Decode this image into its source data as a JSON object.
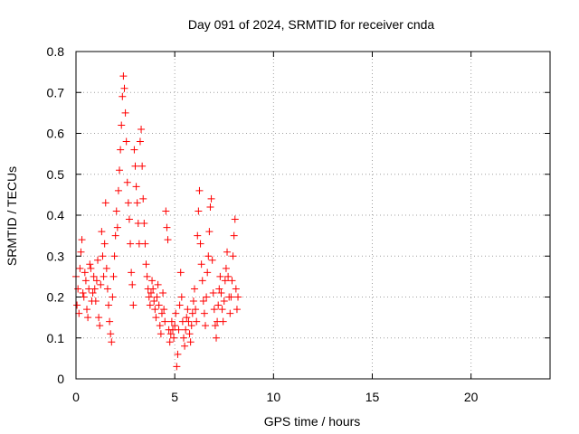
{
  "chart_data": {
    "type": "scatter",
    "title": "Day 091 of 2024, SRMTID for receiver cnda",
    "xlabel": "GPS time / hours",
    "ylabel": "SRMTID / TECUs",
    "xlim": [
      0,
      24
    ],
    "ylim": [
      0,
      0.8
    ],
    "xticks": [
      0,
      5,
      10,
      15,
      20
    ],
    "yticks": [
      0,
      0.1,
      0.2,
      0.3,
      0.4,
      0.5,
      0.6,
      0.7,
      0.8
    ],
    "xtick_labels": [
      "0",
      "5",
      "10",
      "15",
      "20"
    ],
    "ytick_labels": [
      "0",
      "0.1",
      "0.2",
      "0.3",
      "0.4",
      "0.5",
      "0.6",
      "0.7",
      "0.8"
    ],
    "grid": true,
    "marker": "+",
    "color": "#ff0000",
    "series": [
      {
        "name": "cnda",
        "points": [
          [
            0.0,
            0.25
          ],
          [
            0.05,
            0.18
          ],
          [
            0.1,
            0.22
          ],
          [
            0.15,
            0.16
          ],
          [
            0.2,
            0.27
          ],
          [
            0.25,
            0.31
          ],
          [
            0.3,
            0.34
          ],
          [
            0.35,
            0.21
          ],
          [
            0.4,
            0.2
          ],
          [
            0.45,
            0.26
          ],
          [
            0.5,
            0.24
          ],
          [
            0.55,
            0.17
          ],
          [
            0.6,
            0.15
          ],
          [
            0.65,
            0.22
          ],
          [
            0.7,
            0.28
          ],
          [
            0.75,
            0.27
          ],
          [
            0.8,
            0.19
          ],
          [
            0.85,
            0.21
          ],
          [
            0.9,
            0.25
          ],
          [
            0.95,
            0.22
          ],
          [
            1.0,
            0.19
          ],
          [
            1.05,
            0.24
          ],
          [
            1.1,
            0.29
          ],
          [
            1.15,
            0.15
          ],
          [
            1.2,
            0.13
          ],
          [
            1.25,
            0.23
          ],
          [
            1.3,
            0.36
          ],
          [
            1.35,
            0.3
          ],
          [
            1.4,
            0.25
          ],
          [
            1.45,
            0.33
          ],
          [
            1.5,
            0.43
          ],
          [
            1.55,
            0.27
          ],
          [
            1.6,
            0.22
          ],
          [
            1.65,
            0.18
          ],
          [
            1.7,
            0.14
          ],
          [
            1.75,
            0.11
          ],
          [
            1.8,
            0.09
          ],
          [
            1.85,
            0.2
          ],
          [
            1.9,
            0.25
          ],
          [
            1.95,
            0.3
          ],
          [
            2.0,
            0.35
          ],
          [
            2.05,
            0.41
          ],
          [
            2.1,
            0.37
          ],
          [
            2.15,
            0.46
          ],
          [
            2.2,
            0.51
          ],
          [
            2.25,
            0.56
          ],
          [
            2.3,
            0.62
          ],
          [
            2.35,
            0.69
          ],
          [
            2.4,
            0.74
          ],
          [
            2.45,
            0.71
          ],
          [
            2.5,
            0.65
          ],
          [
            2.55,
            0.58
          ],
          [
            2.6,
            0.48
          ],
          [
            2.65,
            0.43
          ],
          [
            2.7,
            0.39
          ],
          [
            2.75,
            0.33
          ],
          [
            2.8,
            0.26
          ],
          [
            2.85,
            0.23
          ],
          [
            2.9,
            0.18
          ],
          [
            2.95,
            0.56
          ],
          [
            3.0,
            0.52
          ],
          [
            3.05,
            0.47
          ],
          [
            3.1,
            0.43
          ],
          [
            3.15,
            0.38
          ],
          [
            3.2,
            0.33
          ],
          [
            3.25,
            0.58
          ],
          [
            3.3,
            0.61
          ],
          [
            3.35,
            0.52
          ],
          [
            3.4,
            0.44
          ],
          [
            3.45,
            0.38
          ],
          [
            3.5,
            0.33
          ],
          [
            3.55,
            0.28
          ],
          [
            3.6,
            0.25
          ],
          [
            3.65,
            0.22
          ],
          [
            3.7,
            0.2
          ],
          [
            3.75,
            0.18
          ],
          [
            3.8,
            0.21
          ],
          [
            3.85,
            0.24
          ],
          [
            3.9,
            0.22
          ],
          [
            3.95,
            0.19
          ],
          [
            4.0,
            0.17
          ],
          [
            4.05,
            0.15
          ],
          [
            4.1,
            0.2
          ],
          [
            4.15,
            0.23
          ],
          [
            4.2,
            0.18
          ],
          [
            4.25,
            0.13
          ],
          [
            4.3,
            0.11
          ],
          [
            4.35,
            0.16
          ],
          [
            4.4,
            0.21
          ],
          [
            4.45,
            0.17
          ],
          [
            4.5,
            0.14
          ],
          [
            4.55,
            0.41
          ],
          [
            4.6,
            0.37
          ],
          [
            4.65,
            0.34
          ],
          [
            4.7,
            0.12
          ],
          [
            4.75,
            0.09
          ],
          [
            4.8,
            0.11
          ],
          [
            4.85,
            0.14
          ],
          [
            4.9,
            0.12
          ],
          [
            4.95,
            0.1
          ],
          [
            5.0,
            0.13
          ],
          [
            5.05,
            0.16
          ],
          [
            5.1,
            0.03
          ],
          [
            5.15,
            0.06
          ],
          [
            5.2,
            0.12
          ],
          [
            5.25,
            0.18
          ],
          [
            5.3,
            0.26
          ],
          [
            5.35,
            0.2
          ],
          [
            5.4,
            0.14
          ],
          [
            5.45,
            0.1
          ],
          [
            5.5,
            0.08
          ],
          [
            5.55,
            0.12
          ],
          [
            5.6,
            0.15
          ],
          [
            5.65,
            0.17
          ],
          [
            5.7,
            0.14
          ],
          [
            5.75,
            0.11
          ],
          [
            5.8,
            0.09
          ],
          [
            5.85,
            0.13
          ],
          [
            5.9,
            0.16
          ],
          [
            5.95,
            0.19
          ],
          [
            6.0,
            0.22
          ],
          [
            6.05,
            0.17
          ],
          [
            6.1,
            0.14
          ],
          [
            6.15,
            0.35
          ],
          [
            6.2,
            0.41
          ],
          [
            6.25,
            0.46
          ],
          [
            6.3,
            0.33
          ],
          [
            6.35,
            0.28
          ],
          [
            6.4,
            0.24
          ],
          [
            6.45,
            0.19
          ],
          [
            6.5,
            0.16
          ],
          [
            6.55,
            0.13
          ],
          [
            6.6,
            0.2
          ],
          [
            6.65,
            0.26
          ],
          [
            6.7,
            0.3
          ],
          [
            6.75,
            0.36
          ],
          [
            6.8,
            0.42
          ],
          [
            6.85,
            0.44
          ],
          [
            6.9,
            0.29
          ],
          [
            6.95,
            0.21
          ],
          [
            7.0,
            0.17
          ],
          [
            7.05,
            0.13
          ],
          [
            7.1,
            0.1
          ],
          [
            7.15,
            0.14
          ],
          [
            7.2,
            0.18
          ],
          [
            7.25,
            0.22
          ],
          [
            7.3,
            0.25
          ],
          [
            7.35,
            0.21
          ],
          [
            7.4,
            0.17
          ],
          [
            7.45,
            0.14
          ],
          [
            7.5,
            0.19
          ],
          [
            7.55,
            0.24
          ],
          [
            7.6,
            0.27
          ],
          [
            7.65,
            0.31
          ],
          [
            7.7,
            0.25
          ],
          [
            7.75,
            0.2
          ],
          [
            7.8,
            0.16
          ],
          [
            7.85,
            0.2
          ],
          [
            7.9,
            0.24
          ],
          [
            7.95,
            0.3
          ],
          [
            8.0,
            0.35
          ],
          [
            8.05,
            0.39
          ],
          [
            8.1,
            0.22
          ],
          [
            8.15,
            0.17
          ],
          [
            8.2,
            0.2
          ]
        ]
      }
    ]
  }
}
